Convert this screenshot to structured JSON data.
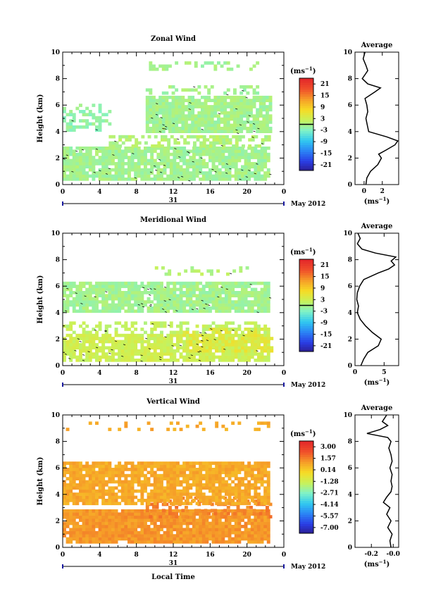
{
  "panels": [
    {
      "title": "Zonal Wind",
      "ylabel": "Height (km)",
      "unit": "(ms",
      "unit_exp": "−1",
      "cbar_ticks": [
        "21",
        "15",
        "9",
        "3",
        "-3",
        "-9",
        "-15",
        "-21"
      ],
      "avg_title": "Average",
      "avg_xticks": [
        "0",
        "2"
      ],
      "avg_unit": "(ms",
      "avg_unit_exp": "−1",
      "date_day": "31",
      "date_label": "May 2012"
    },
    {
      "title": "Meridional Wind",
      "ylabel": "Height (km)",
      "unit": "(ms",
      "unit_exp": "−1",
      "cbar_ticks": [
        "21",
        "15",
        "9",
        "3",
        "-3",
        "-9",
        "-15",
        "-21"
      ],
      "avg_title": "Average",
      "avg_xticks": [
        "0",
        "5"
      ],
      "avg_unit": "(ms",
      "avg_unit_exp": "−1",
      "date_day": "31",
      "date_label": "May 2012"
    },
    {
      "title": "Vertical Wind",
      "ylabel": "Height (km)",
      "unit": "(ms",
      "unit_exp": "−1",
      "cbar_ticks": [
        "3.00",
        "1.57",
        "0.14",
        "-1.28",
        "-2.71",
        "-4.14",
        "-5.57",
        "-7.00"
      ],
      "avg_title": "Average",
      "avg_xticks": [
        "-0.2",
        "-0.0"
      ],
      "avg_unit": "(ms",
      "avg_unit_exp": "−1",
      "date_day": "31",
      "date_label": "May 2012",
      "xlabel": "Local Time"
    }
  ],
  "chart_data": [
    {
      "type": "heatmap",
      "title": "Zonal Wind",
      "ylabel": "Height (km)",
      "xticks": [
        "0",
        "4",
        "8",
        "12",
        "16",
        "20",
        "0"
      ],
      "yticks": [
        "0",
        "2",
        "4",
        "6",
        "8",
        "10"
      ],
      "xlim": [
        0,
        24
      ],
      "ylim": [
        0,
        10
      ],
      "colorbar_range": [
        -21,
        21
      ],
      "layers": [
        {
          "y0": 0.3,
          "y1": 2.8,
          "x0": 0.0,
          "x1": 22.5,
          "value": 0,
          "density": 0.88
        },
        {
          "y0": 2.8,
          "y1": 3.6,
          "x0": 5.0,
          "x1": 22.5,
          "value": 1,
          "density": 0.55
        },
        {
          "y0": 4.0,
          "y1": 6.0,
          "x0": 0.0,
          "x1": 5.0,
          "value": -1,
          "density": 0.45
        },
        {
          "y0": 3.9,
          "y1": 6.6,
          "x0": 9.0,
          "x1": 22.5,
          "value": 0,
          "density": 0.9
        },
        {
          "y0": 6.8,
          "y1": 7.4,
          "x0": 9.0,
          "x1": 21.0,
          "value": 0,
          "density": 0.35
        },
        {
          "y0": 8.6,
          "y1": 9.2,
          "x0": 9.0,
          "x1": 21.0,
          "value": 0,
          "density": 0.35
        }
      ],
      "profile_xlim": [
        -1,
        3.8
      ],
      "profile": [
        [
          0.0,
          0.2
        ],
        [
          0.5,
          0.3
        ],
        [
          1.0,
          0.7
        ],
        [
          1.5,
          1.5
        ],
        [
          2.0,
          1.9
        ],
        [
          2.3,
          1.6
        ],
        [
          2.6,
          2.4
        ],
        [
          3.0,
          3.4
        ],
        [
          3.3,
          3.7
        ],
        [
          3.6,
          2.5
        ],
        [
          4.0,
          0.5
        ],
        [
          4.5,
          0.35
        ],
        [
          5.0,
          0.2
        ],
        [
          5.5,
          0.4
        ],
        [
          6.0,
          0.3
        ],
        [
          6.5,
          0.1
        ],
        [
          7.0,
          1.2
        ],
        [
          7.3,
          1.8
        ],
        [
          7.6,
          0.4
        ],
        [
          8.0,
          -0.2
        ],
        [
          8.3,
          0.1
        ],
        [
          8.6,
          0.4
        ],
        [
          9.0,
          0.2
        ],
        [
          9.5,
          -0.1
        ],
        [
          10.0,
          0.1
        ]
      ]
    },
    {
      "type": "heatmap",
      "title": "Meridional Wind",
      "ylabel": "Height (km)",
      "xticks": [
        "0",
        "4",
        "8",
        "12",
        "16",
        "20",
        "0"
      ],
      "yticks": [
        "0",
        "2",
        "4",
        "6",
        "8",
        "10"
      ],
      "xlim": [
        0,
        24
      ],
      "ylim": [
        0,
        10
      ],
      "colorbar_range": [
        -21,
        21
      ],
      "layers": [
        {
          "y0": 0.3,
          "y1": 2.4,
          "x0": 0.0,
          "x1": 22.5,
          "value": 3,
          "density": 0.85
        },
        {
          "y0": 1.0,
          "y1": 2.8,
          "x0": 13.0,
          "x1": 22.5,
          "value": 5,
          "density": 0.55
        },
        {
          "y0": 2.4,
          "y1": 3.2,
          "x0": 0.0,
          "x1": 22.5,
          "value": 2,
          "density": 0.4
        },
        {
          "y0": 4.0,
          "y1": 6.3,
          "x0": 0.0,
          "x1": 22.5,
          "value": 0,
          "density": 0.88
        },
        {
          "y0": 6.8,
          "y1": 7.3,
          "x0": 10.0,
          "x1": 20.0,
          "value": 1,
          "density": 0.2
        }
      ],
      "profile_xlim": [
        0,
        7.5
      ],
      "profile": [
        [
          0.0,
          1.0
        ],
        [
          0.5,
          1.5
        ],
        [
          1.0,
          2.2
        ],
        [
          1.5,
          4.0
        ],
        [
          2.0,
          4.5
        ],
        [
          2.5,
          3.0
        ],
        [
          3.0,
          1.8
        ],
        [
          3.5,
          0.9
        ],
        [
          4.0,
          0.4
        ],
        [
          4.5,
          0.6
        ],
        [
          5.0,
          0.3
        ],
        [
          5.5,
          0.4
        ],
        [
          6.0,
          0.8
        ],
        [
          6.5,
          1.5
        ],
        [
          7.0,
          4.0
        ],
        [
          7.3,
          5.8
        ],
        [
          7.6,
          6.8
        ],
        [
          7.9,
          6.2
        ],
        [
          8.2,
          7.0
        ],
        [
          8.5,
          3.5
        ],
        [
          8.8,
          1.2
        ],
        [
          9.2,
          0.4
        ],
        [
          9.6,
          0.9
        ],
        [
          10.0,
          0.5
        ]
      ]
    },
    {
      "type": "heatmap",
      "title": "Vertical Wind",
      "ylabel": "Height (km)",
      "xlabel": "Local Time",
      "xticks": [
        "0",
        "4",
        "8",
        "12",
        "16",
        "20",
        "0"
      ],
      "yticks": [
        "0",
        "2",
        "4",
        "6",
        "8",
        "10"
      ],
      "xlim": [
        0,
        24
      ],
      "ylim": [
        0,
        10
      ],
      "colorbar_range": [
        -7.0,
        3.0
      ],
      "layers": [
        {
          "y0": 0.3,
          "y1": 2.8,
          "x0": 0.0,
          "x1": 22.5,
          "value": 0.9,
          "density": 0.95
        },
        {
          "y0": 2.2,
          "y1": 3.8,
          "x0": 9.0,
          "x1": 22.5,
          "value": 1.2,
          "density": 0.35
        },
        {
          "y0": 3.2,
          "y1": 6.4,
          "x0": 0.0,
          "x1": 22.5,
          "value": 0.6,
          "density": 0.85
        },
        {
          "y0": 8.8,
          "y1": 9.5,
          "x0": 0.0,
          "x1": 22.5,
          "value": 0.6,
          "density": 0.18
        }
      ],
      "profile_xlim": [
        -0.35,
        0.05
      ],
      "profile": [
        [
          0.0,
          -0.02
        ],
        [
          0.5,
          -0.03
        ],
        [
          1.0,
          -0.01
        ],
        [
          1.5,
          -0.05
        ],
        [
          2.0,
          -0.02
        ],
        [
          2.5,
          -0.06
        ],
        [
          3.0,
          -0.03
        ],
        [
          3.4,
          -0.09
        ],
        [
          3.8,
          -0.06
        ],
        [
          4.2,
          -0.02
        ],
        [
          4.6,
          -0.01
        ],
        [
          5.0,
          -0.02
        ],
        [
          5.5,
          -0.01
        ],
        [
          6.0,
          -0.03
        ],
        [
          6.5,
          -0.01
        ],
        [
          7.0,
          -0.02
        ],
        [
          7.5,
          -0.04
        ],
        [
          8.0,
          -0.02
        ],
        [
          8.3,
          -0.05
        ],
        [
          8.6,
          -0.24
        ],
        [
          8.9,
          -0.12
        ],
        [
          9.2,
          -0.05
        ],
        [
          9.5,
          -0.1
        ],
        [
          10.0,
          -0.06
        ]
      ]
    }
  ]
}
